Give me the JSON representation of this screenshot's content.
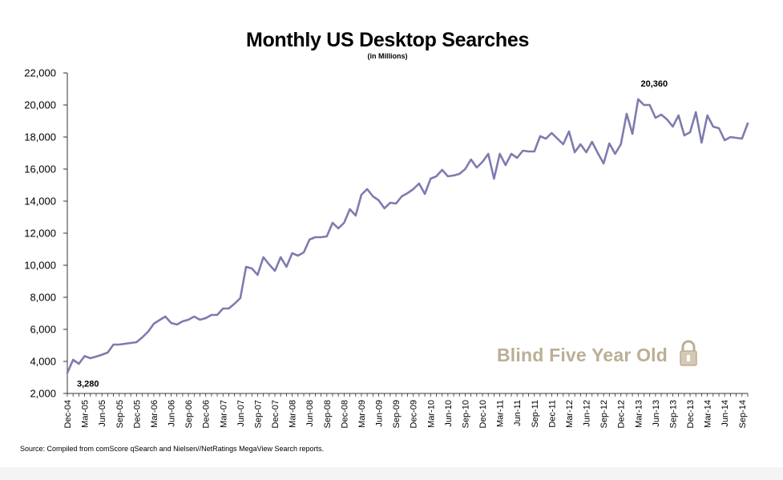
{
  "chart_data": {
    "type": "line",
    "title": "Monthly US Desktop Searches",
    "subtitle": "(in Millions)",
    "ylim": [
      2000,
      22000
    ],
    "y_ticks": [
      2000,
      4000,
      6000,
      8000,
      10000,
      12000,
      14000,
      16000,
      18000,
      20000,
      22000
    ],
    "y_tick_labels": [
      "2,000",
      "4,000",
      "6,000",
      "8,000",
      "10,000",
      "12,000",
      "14,000",
      "16,000",
      "18,000",
      "20,000",
      "22,000"
    ],
    "x_tick_labels": [
      "Dec-04",
      "Mar-05",
      "Jun-05",
      "Sep-05",
      "Dec-05",
      "Mar-06",
      "Jun-06",
      "Sep-06",
      "Dec-06",
      "Mar-07",
      "Jun-07",
      "Sep-07",
      "Dec-07",
      "Mar-08",
      "Jun-08",
      "Sep-08",
      "Dec-08",
      "Mar-09",
      "Jun-09",
      "Sep-09",
      "Dec-09",
      "Mar-10",
      "Jun-10",
      "Sep-10",
      "Dec-10",
      "Mar-11",
      "Jun-11",
      "Sep-11",
      "Dec-11",
      "Mar-12",
      "Jun-12",
      "Sep-12",
      "Dec-12",
      "Mar-13",
      "Jun-13",
      "Sep-13",
      "Dec-13",
      "Mar-14",
      "Jun-14",
      "Sep-14"
    ],
    "x": [
      "Dec-04",
      "Jan-05",
      "Feb-05",
      "Mar-05",
      "Apr-05",
      "May-05",
      "Jun-05",
      "Jul-05",
      "Aug-05",
      "Sep-05",
      "Oct-05",
      "Nov-05",
      "Dec-05",
      "Jan-06",
      "Feb-06",
      "Mar-06",
      "Apr-06",
      "May-06",
      "Jun-06",
      "Jul-06",
      "Aug-06",
      "Sep-06",
      "Oct-06",
      "Nov-06",
      "Dec-06",
      "Jan-07",
      "Feb-07",
      "Mar-07",
      "Apr-07",
      "May-07",
      "Jun-07",
      "Jul-07",
      "Aug-07",
      "Sep-07",
      "Oct-07",
      "Nov-07",
      "Dec-07",
      "Jan-08",
      "Feb-08",
      "Mar-08",
      "Apr-08",
      "May-08",
      "Jun-08",
      "Jul-08",
      "Aug-08",
      "Sep-08",
      "Oct-08",
      "Nov-08",
      "Dec-08",
      "Jan-09",
      "Feb-09",
      "Mar-09",
      "Apr-09",
      "May-09",
      "Jun-09",
      "Jul-09",
      "Aug-09",
      "Sep-09",
      "Oct-09",
      "Nov-09",
      "Dec-09",
      "Jan-10",
      "Feb-10",
      "Mar-10",
      "Apr-10",
      "May-10",
      "Jun-10",
      "Jul-10",
      "Aug-10",
      "Sep-10",
      "Oct-10",
      "Nov-10",
      "Dec-10",
      "Jan-11",
      "Feb-11",
      "Mar-11",
      "Apr-11",
      "May-11",
      "Jun-11",
      "Jul-11",
      "Aug-11",
      "Sep-11",
      "Oct-11",
      "Nov-11",
      "Dec-11",
      "Jan-12",
      "Feb-12",
      "Mar-12",
      "Apr-12",
      "May-12",
      "Jun-12",
      "Jul-12",
      "Aug-12",
      "Sep-12",
      "Oct-12",
      "Nov-12",
      "Dec-12",
      "Jan-13",
      "Feb-13",
      "Mar-13",
      "Apr-13",
      "May-13",
      "Jun-13",
      "Jul-13",
      "Aug-13",
      "Sep-13",
      "Oct-13",
      "Nov-13",
      "Dec-13",
      "Jan-14",
      "Feb-14",
      "Mar-14",
      "Apr-14",
      "May-14",
      "Jun-14",
      "Jul-14",
      "Aug-14",
      "Sep-14",
      "Oct-14"
    ],
    "series": [
      {
        "values": [
          3280,
          4100,
          3850,
          4330,
          4200,
          4300,
          4420,
          4550,
          5050,
          5050,
          5100,
          5150,
          5200,
          5500,
          5850,
          6350,
          6580,
          6800,
          6400,
          6300,
          6500,
          6600,
          6800,
          6600,
          6700,
          6900,
          6900,
          7300,
          7300,
          7600,
          7950,
          9900,
          9800,
          9400,
          10500,
          10050,
          9650,
          10500,
          9900,
          10750,
          10600,
          10800,
          11600,
          11750,
          11750,
          11800,
          12650,
          12300,
          12650,
          13500,
          13100,
          14400,
          14750,
          14300,
          14050,
          13550,
          13900,
          13850,
          14300,
          14500,
          14750,
          15100,
          14450,
          15400,
          15550,
          15950,
          15550,
          15600,
          15700,
          16000,
          16600,
          16100,
          16450,
          16950,
          15400,
          16950,
          16250,
          16950,
          16700,
          17150,
          17100,
          17100,
          18050,
          17900,
          18250,
          17900,
          17550,
          18350,
          17050,
          17550,
          17050,
          17700,
          17000,
          16350,
          17600,
          16950,
          17550,
          19450,
          18200,
          20360,
          20000,
          20000,
          19200,
          19400,
          19100,
          18650,
          19350,
          18100,
          18300,
          19550,
          17650,
          19350,
          18650,
          18550,
          17800,
          18000,
          17950,
          17900,
          18850
        ]
      }
    ],
    "annotations": [
      {
        "text": "3,280",
        "x": "Dec-04",
        "y": 3280
      },
      {
        "text": "20,360",
        "x": "Mar-13",
        "y": 20360
      }
    ],
    "line_color": "#7e7bb0",
    "grid": false,
    "source": "Source: Compiled from comScore qSearch and Nielsen//NetRatings MegaView Search reports.",
    "watermark": "Blind Five Year Old"
  }
}
